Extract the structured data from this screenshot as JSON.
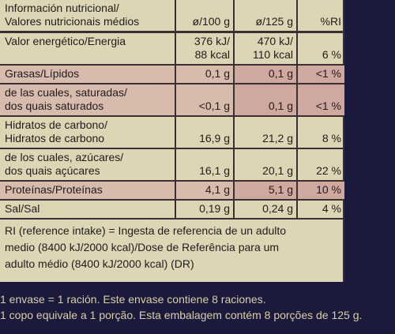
{
  "table": {
    "header": {
      "label": "Información nutricional/\nValores nutricionais médios",
      "per100": "ø/100 g",
      "per125": "ø/125 g",
      "ri": "%RI"
    },
    "rows": [
      {
        "label": "Valor energético/Energia",
        "per100": "376 kJ/\n88 kcal",
        "per125": "470 kJ/\n110 kcal",
        "ri": "6 %"
      },
      {
        "label": "Grasas/Lípidos",
        "per100": "0,1 g",
        "per125": "0,1 g",
        "ri": "<1 %"
      },
      {
        "label": "de las cuales, saturadas/\ndos quais saturados",
        "per100": "<0,1 g",
        "per125": "0,1 g",
        "ri": "<1 %"
      },
      {
        "label": "Hidratos de carbono/\nHidratos de carbono",
        "per100": "16,9 g",
        "per125": "21,2 g",
        "ri": "8 %"
      },
      {
        "label": "de los cuales, azúcares/\ndos quais açúcares",
        "per100": "16,1 g",
        "per125": "20,1 g",
        "ri": "22 %"
      },
      {
        "label": "Proteínas/Proteínas",
        "per100": "4,1 g",
        "per125": "5,1 g",
        "ri": "10 %"
      },
      {
        "label": "Sal/Sal",
        "per100": "0,19 g",
        "per125": "0,24 g",
        "ri": "4 %"
      }
    ],
    "note": "RI (reference intake) = Ingesta de referencia de un adulto\nmedio (8400 kJ/2000 kcal)/Dose de Referência para um\nadulto médio (8400 kJ/2000 kcal) (DR)"
  },
  "footer": {
    "line1": "1 envase = 1 ración. Este envase contiene 8 raciones.",
    "line2": "1 copo equivale a 1 porção. Esta embalagem contém 8 porções de 125 g."
  }
}
